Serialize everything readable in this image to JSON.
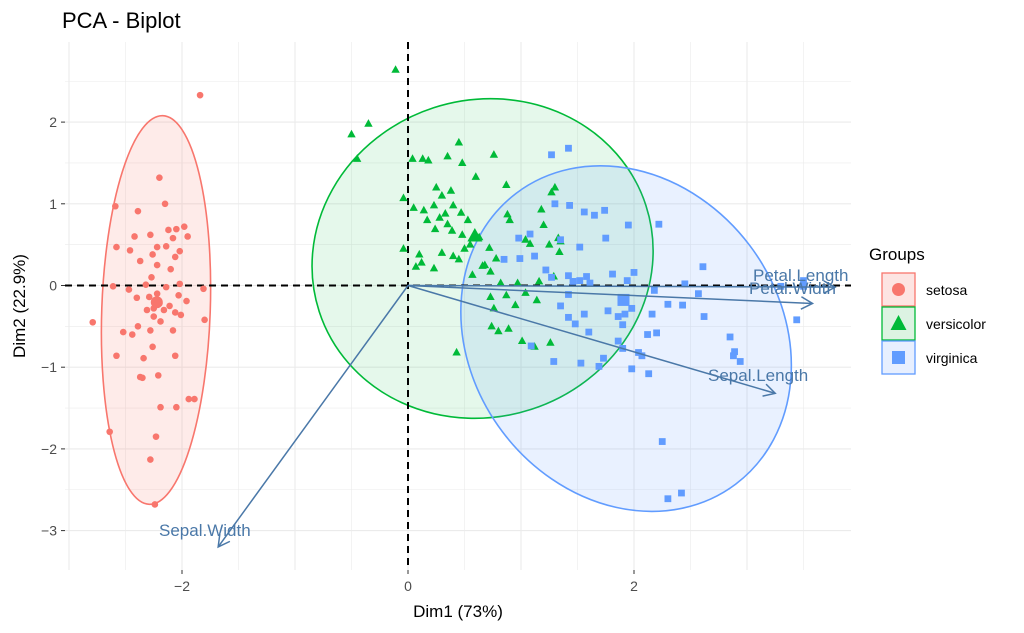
{
  "chart_data": {
    "type": "scatter",
    "title": "PCA - Biplot",
    "xlabel": "Dim1 (73%)",
    "ylabel": "Dim2 (22.9%)",
    "xlim": [
      -3.05,
      3.9
    ],
    "ylim": [
      -3.5,
      2.95
    ],
    "x_ticks": [
      -2,
      0,
      2
    ],
    "y_ticks": [
      -3,
      -2,
      -1,
      0,
      1,
      2
    ],
    "grid": true,
    "legend_title": "Groups",
    "legend_position": "right",
    "series": [
      {
        "name": "setosa",
        "color": "#f8766d",
        "marker": "circle",
        "ellipse": {
          "cx": -2.23,
          "cy": -0.3,
          "rx": 0.48,
          "ry": 2.38,
          "angle": 2
        },
        "points": [
          [
            -1.84,
            2.33
          ],
          [
            -2.2,
            1.32
          ],
          [
            -2.59,
            0.97
          ],
          [
            -2.15,
            1.0
          ],
          [
            -2.39,
            0.91
          ],
          [
            -1.98,
            0.72
          ],
          [
            -2.05,
            0.69
          ],
          [
            -2.12,
            0.68
          ],
          [
            -2.28,
            0.62
          ],
          [
            -2.08,
            0.58
          ],
          [
            -1.95,
            0.6
          ],
          [
            -2.42,
            0.6
          ],
          [
            -2.22,
            0.47
          ],
          [
            -2.14,
            0.48
          ],
          [
            -2.58,
            0.47
          ],
          [
            -2.46,
            0.43
          ],
          [
            -2.02,
            0.42
          ],
          [
            -2.26,
            0.38
          ],
          [
            -2.06,
            0.35
          ],
          [
            -2.37,
            0.3
          ],
          [
            -2.22,
            0.25
          ],
          [
            -2.1,
            0.2
          ],
          [
            -2.27,
            0.1
          ],
          [
            -2.02,
            0.02
          ],
          [
            -2.32,
            0.01
          ],
          [
            -2.61,
            -0.01
          ],
          [
            -2.14,
            -0.02
          ],
          [
            -1.81,
            -0.04
          ],
          [
            -2.47,
            -0.05
          ],
          [
            -2.22,
            -0.1
          ],
          [
            -2.03,
            -0.12
          ],
          [
            -2.29,
            -0.14
          ],
          [
            -2.4,
            -0.15
          ],
          [
            -1.96,
            -0.19
          ],
          [
            -2.2,
            -0.22
          ],
          [
            -2.11,
            -0.25
          ],
          [
            -2.25,
            -0.28
          ],
          [
            -2.16,
            -0.3
          ],
          [
            -2.31,
            -0.3
          ],
          [
            -2.06,
            -0.33
          ],
          [
            -2.01,
            -0.36
          ],
          [
            -2.25,
            -0.38
          ],
          [
            -2.79,
            -0.45
          ],
          [
            -2.19,
            -0.44
          ],
          [
            -1.8,
            -0.42
          ],
          [
            -2.39,
            -0.5
          ],
          [
            -2.28,
            -0.55
          ],
          [
            -2.08,
            -0.55
          ],
          [
            -2.52,
            -0.57
          ],
          [
            -2.44,
            -0.6
          ],
          [
            -2.26,
            -0.75
          ],
          [
            -2.06,
            -0.86
          ],
          [
            -2.58,
            -0.86
          ],
          [
            -2.34,
            -0.89
          ],
          [
            -2.21,
            -1.1
          ],
          [
            -2.37,
            -1.12
          ],
          [
            -2.35,
            -1.13
          ],
          [
            -1.89,
            -1.39
          ],
          [
            -1.94,
            -1.39
          ],
          [
            -2.19,
            -1.49
          ],
          [
            -2.05,
            -1.49
          ],
          [
            -2.64,
            -1.79
          ],
          [
            -2.23,
            -1.85
          ],
          [
            -2.28,
            -2.13
          ],
          [
            -2.24,
            -2.68
          ]
        ]
      },
      {
        "name": "versicolor",
        "color": "#00ba38",
        "marker": "triangle",
        "ellipse": {
          "cx": 0.66,
          "cy": 0.33,
          "rx": 1.52,
          "ry": 1.94,
          "angle": -18
        },
        "points": [
          [
            -0.11,
            2.64
          ],
          [
            -0.5,
            1.85
          ],
          [
            -0.35,
            1.98
          ],
          [
            -0.45,
            1.55
          ],
          [
            0.04,
            1.55
          ],
          [
            0.13,
            1.55
          ],
          [
            0.18,
            1.53
          ],
          [
            0.35,
            1.58
          ],
          [
            0.45,
            1.75
          ],
          [
            0.48,
            1.5
          ],
          [
            0.6,
            1.33
          ],
          [
            0.76,
            1.6
          ],
          [
            0.25,
            1.2
          ],
          [
            0.3,
            1.1
          ],
          [
            0.38,
            1.16
          ],
          [
            0.23,
            0.98
          ],
          [
            0.4,
            0.98
          ],
          [
            -0.04,
            1.07
          ],
          [
            0.05,
            0.95
          ],
          [
            0.14,
            0.92
          ],
          [
            0.28,
            0.83
          ],
          [
            0.47,
            0.89
          ],
          [
            0.53,
            0.8
          ],
          [
            0.35,
            0.75
          ],
          [
            0.17,
            0.8
          ],
          [
            0.24,
            0.69
          ],
          [
            0.39,
            0.67
          ],
          [
            0.48,
            0.62
          ],
          [
            0.63,
            0.59
          ],
          [
            0.55,
            0.5
          ],
          [
            0.5,
            0.45
          ],
          [
            0.45,
            0.32
          ],
          [
            0.72,
            0.46
          ],
          [
            0.78,
            0.33
          ],
          [
            0.4,
            0.36
          ],
          [
            0.3,
            0.4
          ],
          [
            0.1,
            0.38
          ],
          [
            -0.04,
            0.45
          ],
          [
            0.12,
            0.28
          ],
          [
            0.23,
            0.21
          ],
          [
            0.66,
            0.24
          ],
          [
            0.57,
            0.13
          ],
          [
            0.73,
            0.17
          ],
          [
            0.68,
            0.25
          ],
          [
            0.07,
            0.23
          ],
          [
            0.82,
            0.03
          ],
          [
            0.97,
            0.03
          ],
          [
            0.73,
            -0.14
          ],
          [
            0.87,
            -0.12
          ],
          [
            0.76,
            -0.28
          ],
          [
            0.95,
            -0.24
          ],
          [
            1.04,
            -0.09
          ],
          [
            0.74,
            -0.5
          ],
          [
            0.89,
            -0.53
          ],
          [
            0.8,
            -0.56
          ],
          [
            1.14,
            -0.18
          ],
          [
            1.01,
            -0.68
          ],
          [
            1.12,
            -0.75
          ],
          [
            1.26,
            -0.7
          ],
          [
            0.43,
            -0.82
          ],
          [
            1.29,
            0.11
          ],
          [
            1.16,
            0.05
          ],
          [
            1.08,
            0.51
          ],
          [
            1.18,
            0.93
          ],
          [
            1.2,
            0.74
          ],
          [
            1.25,
            0.5
          ],
          [
            1.34,
            0.41
          ],
          [
            0.88,
            0.87
          ],
          [
            0.9,
            0.8
          ],
          [
            1.04,
            0.56
          ],
          [
            1.27,
            1.14
          ],
          [
            1.3,
            1.2
          ],
          [
            1.33,
            0.58
          ],
          [
            1.35,
            0.54
          ],
          [
            0.87,
            1.23
          ],
          [
            0.33,
            0.88
          ]
        ]
      },
      {
        "name": "virginica",
        "color": "#619cff",
        "marker": "square",
        "ellipse": {
          "cx": 1.93,
          "cy": -0.65,
          "rx": 1.37,
          "ry": 2.23,
          "angle": -37
        },
        "points": [
          [
            1.27,
            1.6
          ],
          [
            1.42,
            1.68
          ],
          [
            1.56,
            0.9
          ],
          [
            1.74,
            0.92
          ],
          [
            1.95,
            0.74
          ],
          [
            2.22,
            0.75
          ],
          [
            1.3,
            1.0
          ],
          [
            1.43,
            0.98
          ],
          [
            1.65,
            0.86
          ],
          [
            1.75,
            0.58
          ],
          [
            1.35,
            0.56
          ],
          [
            1.52,
            0.47
          ],
          [
            0.98,
            0.58
          ],
          [
            1.08,
            0.63
          ],
          [
            0.99,
            0.33
          ],
          [
            0.85,
            0.32
          ],
          [
            1.12,
            0.36
          ],
          [
            1.22,
            0.19
          ],
          [
            1.42,
            0.12
          ],
          [
            1.61,
            0.03
          ],
          [
            1.94,
            0.06
          ],
          [
            1.81,
            0.14
          ],
          [
            2.0,
            0.16
          ],
          [
            1.58,
            0.11
          ],
          [
            1.52,
            0.06
          ],
          [
            1.42,
            -0.11
          ],
          [
            1.35,
            -0.25
          ],
          [
            1.42,
            -0.39
          ],
          [
            1.48,
            -0.47
          ],
          [
            1.6,
            -0.57
          ],
          [
            1.86,
            -0.38
          ],
          [
            1.9,
            -0.48
          ],
          [
            1.77,
            -0.31
          ],
          [
            1.56,
            -0.35
          ],
          [
            1.86,
            -0.68
          ],
          [
            2.12,
            -0.6
          ],
          [
            2.2,
            -0.58
          ],
          [
            1.9,
            -0.77
          ],
          [
            2.04,
            -0.82
          ],
          [
            2.07,
            -0.86
          ],
          [
            1.73,
            -0.89
          ],
          [
            1.98,
            -1.02
          ],
          [
            2.13,
            -1.08
          ],
          [
            1.69,
            -0.99
          ],
          [
            1.53,
            -0.95
          ],
          [
            1.29,
            -0.93
          ],
          [
            1.09,
            -0.74
          ],
          [
            2.16,
            -0.35
          ],
          [
            2.3,
            -0.23
          ],
          [
            2.43,
            -0.24
          ],
          [
            2.57,
            -0.1
          ],
          [
            1.98,
            -0.28
          ],
          [
            1.92,
            -0.35
          ],
          [
            2.62,
            -0.38
          ],
          [
            2.85,
            -0.63
          ],
          [
            2.88,
            -0.86
          ],
          [
            2.89,
            -0.81
          ],
          [
            2.94,
            -0.93
          ],
          [
            3.44,
            -0.42
          ],
          [
            2.61,
            0.23
          ],
          [
            2.18,
            -0.06
          ],
          [
            2.45,
            0.02
          ],
          [
            2.25,
            -1.91
          ],
          [
            2.3,
            -2.61
          ],
          [
            2.42,
            -2.54
          ],
          [
            3.3,
            -0.01
          ],
          [
            3.5,
            -0.01
          ],
          [
            3.5,
            0.06
          ],
          [
            1.46,
            0.05
          ],
          [
            1.27,
            0.1
          ]
        ]
      }
    ],
    "variables": [
      {
        "name": "Petal.Length",
        "x": 3.78,
        "y": -0.02
      },
      {
        "name": "Petal.Width",
        "x": 3.58,
        "y": -0.22
      },
      {
        "name": "Sepal.Length",
        "x": 3.25,
        "y": -1.32
      },
      {
        "name": "Sepal.Width",
        "x": -1.68,
        "y": -3.2
      }
    ]
  },
  "labels": {
    "title": "PCA - Biplot",
    "xlabel": "Dim1 (73%)",
    "ylabel": "Dim2 (22.9%)",
    "legend_title": "Groups",
    "legend": [
      "setosa",
      "versicolor",
      "virginica"
    ],
    "var_labels": [
      "Petal.Length",
      "Petal.Width",
      "Sepal.Length",
      "Sepal.Width"
    ]
  }
}
